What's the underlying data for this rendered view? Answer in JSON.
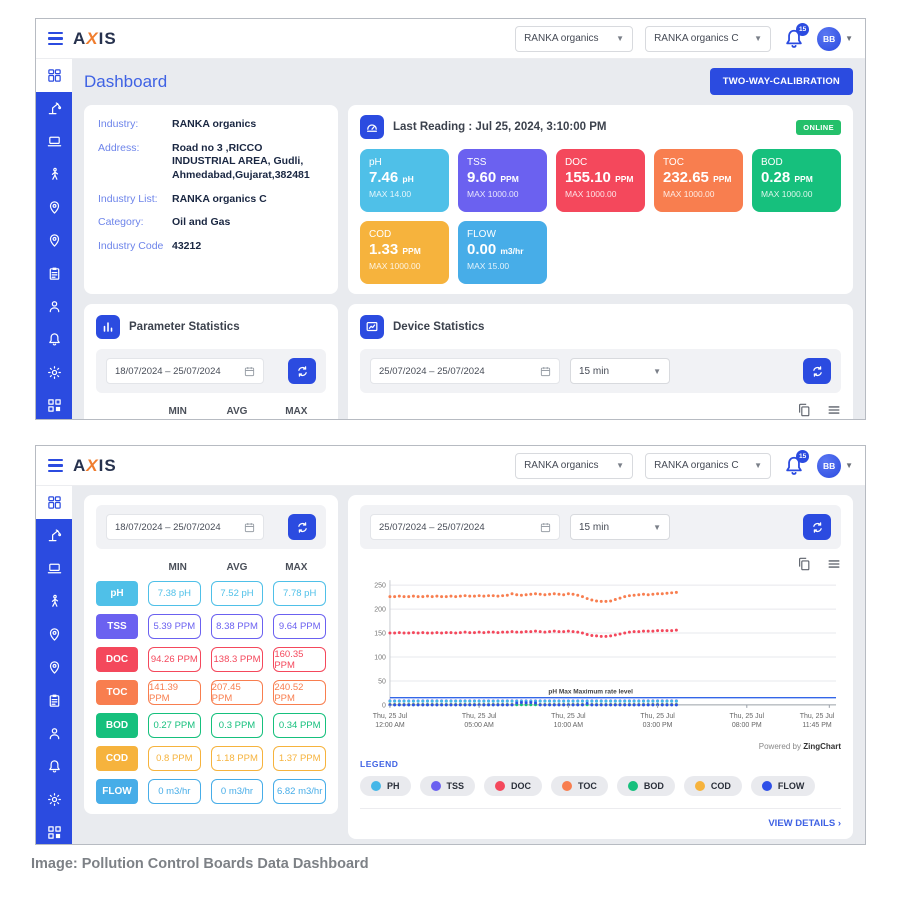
{
  "caption": "Image: Pollution Control Boards Data Dashboard",
  "brand": {
    "logo_a": "A",
    "logo_x": "X",
    "logo_is": "IS"
  },
  "header": {
    "industry_select": "RANKA organics",
    "industry_list_select": "RANKA organics C",
    "notification_count": "15",
    "avatar_initials": "BB"
  },
  "sidebar": {
    "items": [
      "dashboard",
      "industry",
      "devices",
      "field-staff",
      "location",
      "site-location",
      "reports",
      "users",
      "alerts",
      "settings",
      "modules",
      "organization"
    ]
  },
  "panel1": {
    "page_title": "Dashboard",
    "calibration_button": "TWO-WAY-CALIBRATION",
    "industry_info": {
      "rows": [
        {
          "label": "Industry:",
          "value": "RANKA organics"
        },
        {
          "label": "Address:",
          "value": "Road no 3 ,RICCO INDUSTRIAL AREA, Gudli, Ahmedabad,Gujarat,382481"
        },
        {
          "label": "Industry List:",
          "value": "RANKA organics C"
        },
        {
          "label": "Category:",
          "value": "Oil and Gas"
        },
        {
          "label": "Industry Code",
          "value": "43212"
        }
      ]
    },
    "last_reading": {
      "title": "Last Reading : Jul 25, 2024, 3:10:00 PM",
      "status": "ONLINE",
      "cards": [
        {
          "label": "pH",
          "value": "7.46",
          "unit": "pH",
          "max": "MAX 14.00",
          "color": "#4fc0e8"
        },
        {
          "label": "TSS",
          "value": "9.60",
          "unit": "PPM",
          "max": "MAX 1000.00",
          "color": "#6b61f0"
        },
        {
          "label": "DOC",
          "value": "155.10",
          "unit": "PPM",
          "max": "MAX 1000.00",
          "color": "#f4485c"
        },
        {
          "label": "TOC",
          "value": "232.65",
          "unit": "PPM",
          "max": "MAX 1000.00",
          "color": "#f87e4f"
        },
        {
          "label": "BOD",
          "value": "0.28",
          "unit": "PPM",
          "max": "MAX 1000.00",
          "color": "#16c07d"
        },
        {
          "label": "COD",
          "value": "1.33",
          "unit": "PPM",
          "max": "MAX 1000.00",
          "color": "#f6b33d"
        },
        {
          "label": "FLOW",
          "value": "0.00",
          "unit": "m3/hr",
          "max": "MAX 15.00",
          "color": "#47ade8"
        }
      ]
    },
    "parameter_statistics": {
      "title": "Parameter Statistics",
      "date_range": "18/07/2024 – 25/07/2024",
      "columns": [
        "MIN",
        "AVG",
        "MAX"
      ]
    },
    "device_statistics": {
      "title": "Device Statistics",
      "date_range": "25/07/2024 – 25/07/2024",
      "interval": "15 min"
    }
  },
  "panel2": {
    "parameter_statistics": {
      "date_range": "18/07/2024 – 25/07/2024",
      "columns": [
        "MIN",
        "AVG",
        "MAX"
      ],
      "rows": [
        {
          "param": "pH",
          "color": "#4fc0e8",
          "min": "7.38 pH",
          "avg": "7.52 pH",
          "max": "7.78 pH"
        },
        {
          "param": "TSS",
          "color": "#6b61f0",
          "min": "5.39 PPM",
          "avg": "8.38 PPM",
          "max": "9.64 PPM"
        },
        {
          "param": "DOC",
          "color": "#f4485c",
          "min": "94.26 PPM",
          "avg": "138.3 PPM",
          "max": "160.35 PPM"
        },
        {
          "param": "TOC",
          "color": "#f87e4f",
          "min": "141.39 PPM",
          "avg": "207.45 PPM",
          "max": "240.52 PPM"
        },
        {
          "param": "BOD",
          "color": "#16c07d",
          "min": "0.27 PPM",
          "avg": "0.3 PPM",
          "max": "0.34 PPM"
        },
        {
          "param": "COD",
          "color": "#f6b33d",
          "min": "0.8 PPM",
          "avg": "1.18 PPM",
          "max": "1.37 PPM"
        },
        {
          "param": "FLOW",
          "color": "#47ade8",
          "min": "0 m3/hr",
          "avg": "0 m3/hr",
          "max": "6.82 m3/hr"
        }
      ]
    },
    "device_statistics": {
      "date_range": "25/07/2024 – 25/07/2024",
      "interval": "15 min",
      "legend_title": "LEGEND",
      "legend": [
        {
          "label": "PH",
          "color": "#45b7e8"
        },
        {
          "label": "TSS",
          "color": "#6b61f0"
        },
        {
          "label": "DOC",
          "color": "#f4485c"
        },
        {
          "label": "TOC",
          "color": "#f87e4f"
        },
        {
          "label": "BOD",
          "color": "#16c07d"
        },
        {
          "label": "COD",
          "color": "#f6b33d"
        },
        {
          "label": "FLOW",
          "color": "#2f50e8"
        }
      ],
      "powered_by_prefix": "Powered by ",
      "powered_by_brand": "ZingChart",
      "view_details": "VIEW DETAILS ›"
    }
  },
  "chart_data": {
    "type": "line",
    "title": "Device Statistics - Thu 25 Jul 2024, 15-min interval readings",
    "ylim": [
      0,
      250
    ],
    "yticks": [
      0,
      50,
      100,
      150,
      200,
      250
    ],
    "x_slots": 96,
    "data_end_slot": 61,
    "xtick_labels": [
      [
        "Thu, 25 Jul",
        "12:00 AM"
      ],
      [
        "Thu, 25 Jul",
        "05:00 AM"
      ],
      [
        "Thu, 25 Jul",
        "10:00 AM"
      ],
      [
        "Thu, 25 Jul",
        "03:00 PM"
      ],
      [
        "Thu, 25 Jul",
        "08:00 PM"
      ],
      [
        "Thu, 25 Jul",
        "11:45 PM"
      ]
    ],
    "xtick_positions": [
      0,
      0.2,
      0.4,
      0.6,
      0.8,
      0.985
    ],
    "reference_line": {
      "y": 15,
      "label": "pH Max Maximum rate level",
      "color": "#3366e8"
    },
    "series": [
      {
        "name": "TOC",
        "color": "#f87e4f",
        "values": [
          226,
          226,
          227,
          226,
          226,
          227,
          226,
          226,
          227,
          226,
          227,
          226,
          226,
          227,
          226,
          227,
          228,
          227,
          227,
          228,
          227,
          228,
          228,
          227,
          228,
          229,
          232,
          230,
          229,
          230,
          231,
          232,
          231,
          230,
          231,
          232,
          231,
          230,
          232,
          231,
          229,
          226,
          222,
          219,
          217,
          216,
          216,
          217,
          220,
          223,
          226,
          228,
          229,
          230,
          231,
          230,
          231,
          232,
          232,
          233,
          234,
          235
        ]
      },
      {
        "name": "DOC",
        "color": "#f4485c",
        "values": [
          150,
          150,
          151,
          150,
          150,
          151,
          150,
          151,
          150,
          150,
          151,
          150,
          151,
          151,
          150,
          151,
          152,
          151,
          151,
          152,
          151,
          152,
          152,
          151,
          152,
          152,
          153,
          152,
          152,
          153,
          153,
          154,
          153,
          152,
          153,
          154,
          153,
          153,
          154,
          153,
          152,
          150,
          147,
          145,
          144,
          143,
          143,
          144,
          146,
          148,
          150,
          152,
          153,
          153,
          154,
          154,
          154,
          155,
          155,
          155,
          155,
          156
        ]
      },
      {
        "name": "TSS",
        "color": "#6b61f0",
        "constant": 8.4,
        "count": 62
      },
      {
        "name": "PH",
        "color": "#45b7e8",
        "constant": 7.5,
        "count": 62
      },
      {
        "name": "COD",
        "color": "#f6b33d",
        "constant": 1.2,
        "count": 62
      },
      {
        "name": "BOD",
        "color": "#16c07d",
        "constant": 0.3,
        "count": 62
      },
      {
        "name": "FLOW",
        "color": "#2f50e8",
        "values": [
          0,
          0,
          0,
          0,
          0,
          0,
          0,
          0,
          0,
          0,
          0,
          0,
          0,
          0,
          0,
          0,
          0,
          0,
          0,
          0,
          0,
          0,
          0,
          0,
          0,
          0,
          0,
          4,
          5,
          4.5,
          5,
          4,
          0,
          0,
          0,
          0,
          0,
          0,
          0,
          0,
          0,
          0,
          3,
          0,
          0,
          0,
          0,
          0,
          0,
          0,
          0,
          0,
          0,
          0,
          0,
          0,
          0,
          0,
          0,
          0,
          0,
          0
        ]
      }
    ],
    "legend_position": "bottom",
    "grid": true,
    "powered_by": "Powered by ZingChart"
  }
}
